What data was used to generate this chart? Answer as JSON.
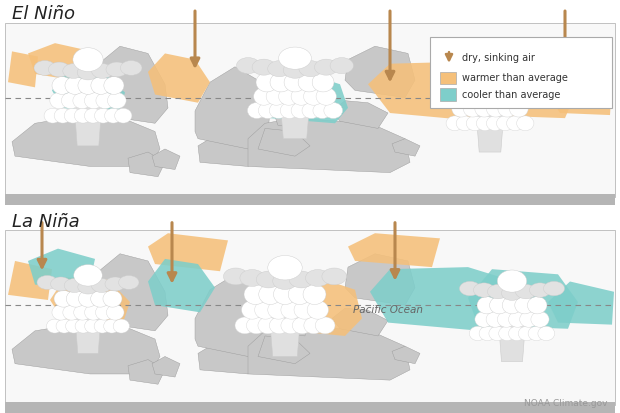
{
  "title_elnino": "El Niño",
  "title_lanina": "La Niña",
  "background": "#ffffff",
  "warmer_color": "#f5c07a",
  "cooler_color": "#7ececa",
  "arrow_color": "#b8874e",
  "land_color": "#c8c8c8",
  "ocean_color": "#f8f8f8",
  "border_color": "#b0b0b0",
  "dashed_color": "#888888",
  "text_color": "#222222",
  "source_text": "NOAA Climate.gov",
  "pacific_text": "Pacific Ocean",
  "legend_arrow_label": "dry, sinking air",
  "legend_warm_label": "warmer than average",
  "legend_cool_label": "cooler than average"
}
